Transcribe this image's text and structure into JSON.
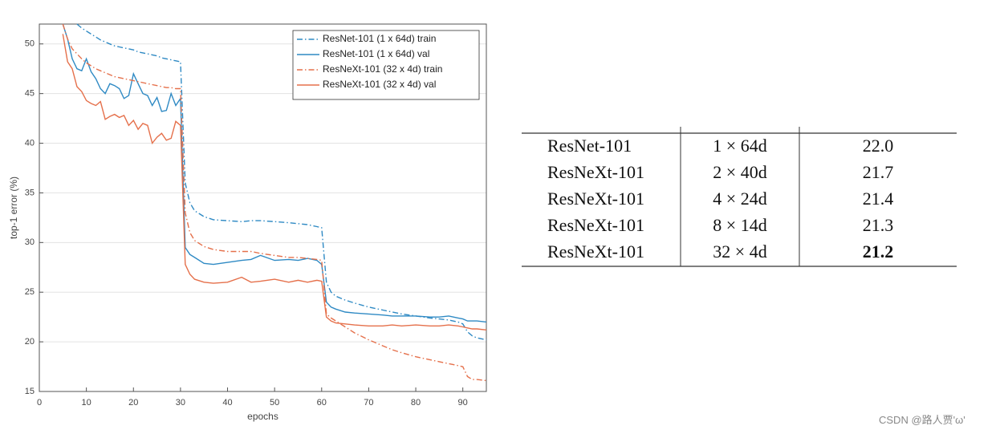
{
  "chart_data": {
    "type": "line",
    "xlabel": "epochs",
    "ylabel": "top-1 error (%)",
    "x": [
      4,
      5,
      6,
      7,
      8,
      9,
      10,
      11,
      12,
      13,
      14,
      15,
      16,
      17,
      18,
      19,
      20,
      21,
      22,
      23,
      24,
      25,
      26,
      27,
      28,
      29,
      30,
      31,
      32,
      33,
      35,
      37,
      40,
      43,
      45,
      47,
      50,
      53,
      55,
      57,
      59,
      60,
      61,
      62,
      63,
      65,
      67,
      70,
      73,
      75,
      77,
      80,
      83,
      85,
      87,
      89,
      90,
      91,
      92,
      93,
      95
    ],
    "series": [
      {
        "name": "ResNet-101 (1 x 64d) train",
        "color": "#2f8ac4",
        "style": "dash-dot",
        "values": [
          null,
          null,
          null,
          null,
          52,
          51.6,
          51.3,
          51,
          50.7,
          50.4,
          50.2,
          50,
          49.8,
          49.7,
          49.6,
          49.5,
          49.4,
          49.2,
          49.1,
          49,
          48.9,
          48.8,
          48.6,
          48.5,
          48.4,
          48.3,
          48.2,
          36,
          34,
          33.2,
          32.6,
          32.3,
          32.2,
          32.1,
          32.2,
          32.2,
          32.1,
          32,
          31.9,
          31.8,
          31.6,
          31.5,
          26,
          25,
          24.6,
          24.2,
          23.9,
          23.5,
          23.2,
          23,
          22.8,
          22.6,
          22.4,
          22.3,
          22.2,
          22,
          21.8,
          21,
          20.6,
          20.4,
          20.2
        ]
      },
      {
        "name": "ResNet-101 (1 x 64d) val",
        "color": "#2f8ac4",
        "style": "solid",
        "values": [
          null,
          52,
          50.5,
          48.5,
          47.5,
          47.3,
          48.5,
          47.2,
          46.5,
          45.5,
          45,
          46,
          45.8,
          45.5,
          44.5,
          44.8,
          47,
          46,
          45,
          44.8,
          43.8,
          44.6,
          43.2,
          43.3,
          45,
          43.8,
          44.5,
          29.5,
          28.8,
          28.5,
          27.9,
          27.8,
          28,
          28.2,
          28.3,
          28.7,
          28.2,
          28.3,
          28.2,
          28.4,
          28.2,
          27.8,
          24,
          23.5,
          23.3,
          23,
          22.9,
          22.8,
          22.7,
          22.6,
          22.6,
          22.6,
          22.5,
          22.5,
          22.6,
          22.4,
          22.3,
          22.1,
          22.1,
          22.1,
          22
        ]
      },
      {
        "name": "ResNeXt-101 (32 x 4d) train",
        "color": "#e5704b",
        "style": "dash-dot",
        "values": [
          null,
          52,
          50.5,
          49.5,
          49,
          48.5,
          48.1,
          47.8,
          47.5,
          47.3,
          47.1,
          46.9,
          46.7,
          46.6,
          46.5,
          46.4,
          46.3,
          46.2,
          46.1,
          46,
          45.9,
          45.8,
          45.7,
          45.6,
          45.6,
          45.5,
          45.5,
          33,
          31,
          30.2,
          29.6,
          29.3,
          29.1,
          29.1,
          29.1,
          28.9,
          28.7,
          28.5,
          28.5,
          28.4,
          28.3,
          28.2,
          22.8,
          22.4,
          22.1,
          21.5,
          20.9,
          20.2,
          19.6,
          19.2,
          18.9,
          18.5,
          18.2,
          18,
          17.8,
          17.6,
          17.5,
          16.5,
          16.2,
          16.2,
          16.1
        ]
      },
      {
        "name": "ResNeXt-101 (32 x 4d) val",
        "color": "#e5704b",
        "style": "solid",
        "values": [
          null,
          51,
          48.2,
          47.5,
          45.7,
          45.2,
          44.3,
          44,
          43.8,
          44.2,
          42.4,
          42.7,
          42.9,
          42.6,
          42.8,
          41.8,
          42.3,
          41.4,
          42,
          41.8,
          40,
          40.6,
          41,
          40.3,
          40.5,
          42.2,
          41.8,
          27.8,
          26.8,
          26.3,
          26,
          25.9,
          26,
          26.5,
          26,
          26.1,
          26.3,
          26,
          26.2,
          26,
          26.2,
          26.1,
          22.5,
          22.1,
          21.9,
          21.8,
          21.7,
          21.6,
          21.6,
          21.7,
          21.6,
          21.7,
          21.6,
          21.6,
          21.7,
          21.6,
          21.5,
          21.4,
          21.3,
          21.3,
          21.2
        ]
      }
    ],
    "xlim": [
      0,
      95
    ],
    "xticks": [
      0,
      10,
      20,
      30,
      40,
      50,
      60,
      70,
      80,
      90
    ],
    "ylim": [
      15,
      52
    ],
    "yticks": [
      15,
      20,
      25,
      30,
      35,
      40,
      45,
      50
    ],
    "grid": true,
    "legend": "upper right"
  },
  "table": {
    "rows": [
      [
        "ResNet-101",
        "1 × 64d",
        "22.0"
      ],
      [
        "ResNeXt-101",
        "2 × 40d",
        "21.7"
      ],
      [
        "ResNeXt-101",
        "4 × 24d",
        "21.4"
      ],
      [
        "ResNeXt-101",
        "8 × 14d",
        "21.3"
      ],
      [
        "ResNeXt-101",
        "32 × 4d",
        "21.2"
      ]
    ],
    "bold": [
      [
        4,
        2
      ]
    ]
  },
  "watermark": "CSDN @路人贾'ω'"
}
